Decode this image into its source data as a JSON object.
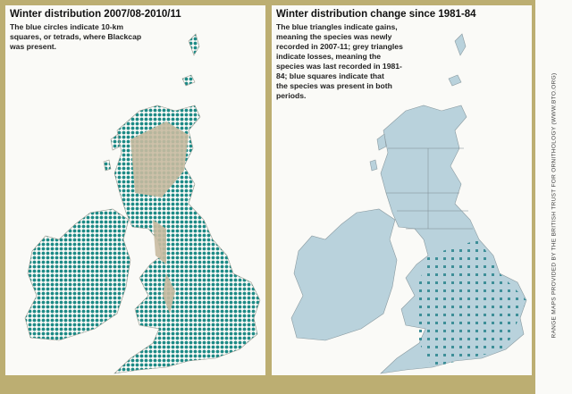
{
  "panels": [
    {
      "title": "Winter distribution 2007/08-2010/11",
      "caption_lines": [
        "The blue circles indicate 10-km",
        "squares, or tetrads, where Blackcap",
        "was present."
      ]
    },
    {
      "title": "Winter distribution change since 1981-84",
      "caption_lines": [
        "The blue triangles indicate gains,",
        "meaning the species was newly",
        "recorded in 2007-11; grey triangles",
        "indicate losses, meaning the",
        "species was last recorded in 1981-",
        "84; blue squares indicate that",
        "the species was present in both",
        "periods."
      ]
    }
  ],
  "credit": "RANGE MAPS PROVIDED BY THE BRITISH TRUST FOR ORNITHOLOGY (WWW.BTO.ORG)"
}
